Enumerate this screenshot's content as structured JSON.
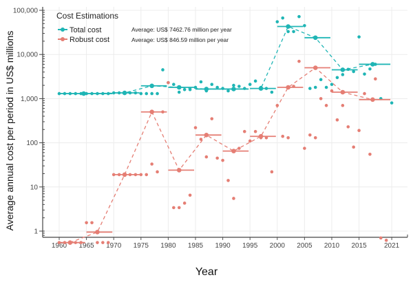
{
  "chart_data": {
    "type": "scatter",
    "title": "",
    "xlabel": "Year",
    "ylabel": "Average annual cost per period in US$ millions",
    "yscale": "log",
    "ylim": [
      0.5,
      100000
    ],
    "xlim": [
      1957,
      2024
    ],
    "x_ticks": [
      1960,
      1965,
      1970,
      1975,
      1980,
      1985,
      1990,
      1995,
      2000,
      2005,
      2010,
      2015,
      2021
    ],
    "y_ticks": [
      {
        "v": 1,
        "label": "1"
      },
      {
        "v": 10,
        "label": "10"
      },
      {
        "v": 100,
        "label": "100"
      },
      {
        "v": 1000,
        "label": "1,000"
      },
      {
        "v": 10000,
        "label": "10,000"
      },
      {
        "v": 100000,
        "label": "100,000"
      }
    ],
    "grid": true,
    "legend": {
      "title": "Cost Estimations",
      "position": "top-left",
      "entries": [
        "Total cost",
        "Robust cost"
      ]
    },
    "annotations": [
      "Average: US$ 7462.76 million per year",
      "Average: US$ 846.59 million per year"
    ],
    "series": [
      {
        "name": "Total cost",
        "color": "#1fb5b5",
        "points": [
          [
            1960,
            1300
          ],
          [
            1961,
            1300
          ],
          [
            1962,
            1300
          ],
          [
            1963,
            1300
          ],
          [
            1964,
            1300
          ],
          [
            1965,
            1300
          ],
          [
            1966,
            1300
          ],
          [
            1967,
            1300
          ],
          [
            1968,
            1300
          ],
          [
            1969,
            1300
          ],
          [
            1970,
            1350
          ],
          [
            1971,
            1350
          ],
          [
            1972,
            1350
          ],
          [
            1973,
            1350
          ],
          [
            1974,
            1350
          ],
          [
            1975,
            1300
          ],
          [
            1976,
            1300
          ],
          [
            1977,
            1300
          ],
          [
            1978,
            1300
          ],
          [
            1979,
            4500
          ],
          [
            1980,
            2300
          ],
          [
            1981,
            2100
          ],
          [
            1982,
            1400
          ],
          [
            1983,
            1600
          ],
          [
            1984,
            1600
          ],
          [
            1985,
            1800
          ],
          [
            1986,
            2400
          ],
          [
            1987,
            1500
          ],
          [
            1988,
            2100
          ],
          [
            1989,
            1800
          ],
          [
            1990,
            1700
          ],
          [
            1991,
            1500
          ],
          [
            1992,
            2000
          ],
          [
            1993,
            1900
          ],
          [
            1994,
            1700
          ],
          [
            1995,
            2100
          ],
          [
            1996,
            2500
          ],
          [
            1997,
            1800
          ],
          [
            1998,
            1700
          ],
          [
            1999,
            1400
          ],
          [
            2000,
            55000
          ],
          [
            2001,
            67000
          ],
          [
            2002,
            33000
          ],
          [
            2003,
            33000
          ],
          [
            2004,
            72000
          ],
          [
            2005,
            45000
          ],
          [
            2006,
            1700
          ],
          [
            2007,
            1800
          ],
          [
            2008,
            2700
          ],
          [
            2009,
            1800
          ],
          [
            2010,
            2100
          ],
          [
            2011,
            3000
          ],
          [
            2012,
            3500
          ],
          [
            2013,
            4600
          ],
          [
            2014,
            4100
          ],
          [
            2015,
            25000
          ],
          [
            2016,
            3600
          ],
          [
            2017,
            4700
          ],
          [
            2018,
            6000
          ],
          [
            2019,
            1000
          ],
          [
            2021,
            800
          ]
        ],
        "period_means": [
          {
            "start": 1960,
            "end": 1969,
            "mean": 1300
          },
          {
            "start": 1970,
            "end": 1974,
            "mean": 1350
          },
          {
            "start": 1975,
            "end": 1979,
            "mean": 1950
          },
          {
            "start": 1980,
            "end": 1984,
            "mean": 1800
          },
          {
            "start": 1985,
            "end": 1989,
            "mean": 1650
          },
          {
            "start": 1990,
            "end": 1994,
            "mean": 1650
          },
          {
            "start": 1995,
            "end": 1999,
            "mean": 1700
          },
          {
            "start": 2000,
            "end": 2004,
            "mean": 43000
          },
          {
            "start": 2005,
            "end": 2009,
            "mean": 24000
          },
          {
            "start": 2010,
            "end": 2014,
            "mean": 4500
          },
          {
            "start": 2015,
            "end": 2020,
            "mean": 6000
          }
        ]
      },
      {
        "name": "Robust cost",
        "color": "#e57e74",
        "points": [
          [
            1960,
            0.55
          ],
          [
            1961,
            0.55
          ],
          [
            1962,
            0.55
          ],
          [
            1963,
            0.55
          ],
          [
            1964,
            0.55
          ],
          [
            1965,
            1.55
          ],
          [
            1966,
            1.55
          ],
          [
            1967,
            0.55
          ],
          [
            1968,
            0.55
          ],
          [
            1969,
            0.55
          ],
          [
            1970,
            19
          ],
          [
            1971,
            19
          ],
          [
            1972,
            19
          ],
          [
            1973,
            19
          ],
          [
            1974,
            19
          ],
          [
            1975,
            19
          ],
          [
            1976,
            19
          ],
          [
            1977,
            33
          ],
          [
            1978,
            22
          ],
          [
            1979,
            500
          ],
          [
            1980,
            2300
          ],
          [
            1981,
            3.4
          ],
          [
            1982,
            3.4
          ],
          [
            1983,
            4.3
          ],
          [
            1984,
            6.5
          ],
          [
            1985,
            220
          ],
          [
            1986,
            120
          ],
          [
            1987,
            48
          ],
          [
            1988,
            350
          ],
          [
            1989,
            45
          ],
          [
            1990,
            40
          ],
          [
            1991,
            14
          ],
          [
            1992,
            5.5
          ],
          [
            1993,
            75
          ],
          [
            1994,
            180
          ],
          [
            1995,
            110
          ],
          [
            1996,
            180
          ],
          [
            1997,
            130
          ],
          [
            1998,
            130
          ],
          [
            1999,
            22
          ],
          [
            2000,
            700
          ],
          [
            2001,
            140
          ],
          [
            2002,
            130
          ],
          [
            2003,
            1900
          ],
          [
            2004,
            7000
          ],
          [
            2005,
            75
          ],
          [
            2006,
            150
          ],
          [
            2007,
            130
          ],
          [
            2008,
            1000
          ],
          [
            2009,
            700
          ],
          [
            2010,
            1500
          ],
          [
            2011,
            330
          ],
          [
            2012,
            700
          ],
          [
            2013,
            230
          ],
          [
            2014,
            80
          ],
          [
            2015,
            190
          ],
          [
            2016,
            1300
          ],
          [
            2017,
            55
          ],
          [
            2018,
            2800
          ],
          [
            2019,
            0.7
          ],
          [
            2020,
            0.62
          ]
        ],
        "period_means": [
          {
            "start": 1960,
            "end": 1964,
            "mean": 0.55
          },
          {
            "start": 1965,
            "end": 1969,
            "mean": 0.95
          },
          {
            "start": 1970,
            "end": 1974,
            "mean": 19
          },
          {
            "start": 1975,
            "end": 1979,
            "mean": 500
          },
          {
            "start": 1980,
            "end": 1984,
            "mean": 24
          },
          {
            "start": 1985,
            "end": 1989,
            "mean": 150
          },
          {
            "start": 1990,
            "end": 1994,
            "mean": 65
          },
          {
            "start": 1995,
            "end": 1999,
            "mean": 140
          },
          {
            "start": 2000,
            "end": 2004,
            "mean": 1800
          },
          {
            "start": 2005,
            "end": 2009,
            "mean": 5000
          },
          {
            "start": 2010,
            "end": 2014,
            "mean": 1400
          },
          {
            "start": 2015,
            "end": 2020,
            "mean": 950
          }
        ]
      }
    ]
  }
}
